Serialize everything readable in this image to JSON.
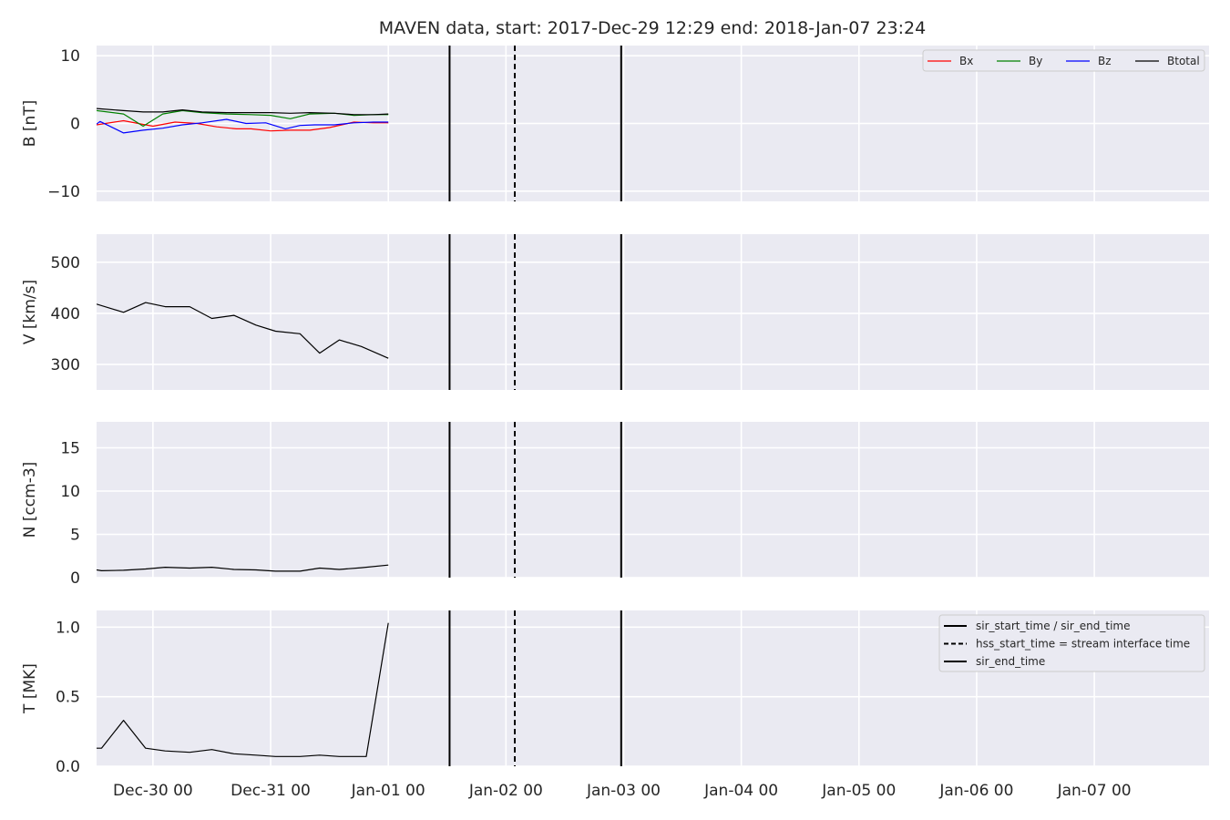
{
  "chart_data": {
    "type": "line",
    "title": "MAVEN data, start: 2017-Dec-29 12:29  end: 2018-Jan-07 23:24",
    "x_unit": "hours",
    "xlim": [
      -11.5,
      215.4
    ],
    "x_ticks": [
      0,
      24,
      48,
      72,
      96,
      120,
      144,
      168,
      192
    ],
    "x_tick_labels": [
      "Dec-30 00",
      "Dec-31 00",
      "Jan-01 00",
      "Jan-02 00",
      "Jan-03 00",
      "Jan-04 00",
      "Jan-05 00",
      "Jan-06 00",
      "Jan-07 00"
    ],
    "vertical_markers": [
      {
        "x": 60.5,
        "style": "solid"
      },
      {
        "x": 73.8,
        "style": "dashed"
      },
      {
        "x": 95.5,
        "style": "solid"
      }
    ],
    "grid": true,
    "panels": [
      {
        "id": "B",
        "ylabel": "B [nT]",
        "ylim": [
          -11.5,
          11.5
        ],
        "yticks": [
          -10,
          0,
          10
        ],
        "ytick_labels": [
          "−10",
          "0",
          "10"
        ],
        "legend_position": "top-right",
        "series": [
          {
            "name": "Bx",
            "color": "#ff0000",
            "x": [
              -11.5,
              -6,
              0,
              4.5,
              9,
              13,
              17,
              20,
              24,
              28,
              32,
              36,
              41,
              45,
              48
            ],
            "y": [
              -0.2,
              0.4,
              -0.4,
              0.2,
              0.0,
              -0.5,
              -0.8,
              -0.8,
              -1.1,
              -1.0,
              -1.0,
              -0.6,
              0.2,
              0.1,
              0.1
            ]
          },
          {
            "name": "By",
            "color": "#008000",
            "x": [
              -11.5,
              -6,
              -2,
              2,
              6,
              10,
              15,
              20,
              24,
              28,
              32,
              37,
              41,
              45,
              48
            ],
            "y": [
              1.9,
              1.4,
              -0.4,
              1.4,
              1.9,
              1.6,
              1.4,
              1.3,
              1.2,
              0.7,
              1.4,
              1.5,
              1.2,
              1.3,
              1.3
            ]
          },
          {
            "name": "Bz",
            "color": "#0000ff",
            "x": [
              -11.5,
              -10.8,
              -6,
              -2,
              2,
              6,
              10,
              15,
              19,
              23,
              27,
              30,
              33,
              37,
              41,
              45,
              48
            ],
            "y": [
              -0.1,
              0.3,
              -1.4,
              -1.0,
              -0.7,
              -0.2,
              0.1,
              0.6,
              0.0,
              0.1,
              -0.8,
              -0.3,
              -0.2,
              -0.2,
              0.1,
              0.2,
              0.2
            ]
          },
          {
            "name": "Btotal",
            "color": "#000000",
            "x": [
              -11.5,
              -6,
              -2,
              2,
              6,
              10,
              15,
              20,
              24,
              28,
              32,
              37,
              41,
              45,
              48
            ],
            "y": [
              2.2,
              1.9,
              1.7,
              1.7,
              2.0,
              1.7,
              1.6,
              1.6,
              1.6,
              1.5,
              1.6,
              1.5,
              1.3,
              1.3,
              1.4
            ]
          }
        ]
      },
      {
        "id": "V",
        "ylabel": "V [km/s]",
        "ylim": [
          250,
          555
        ],
        "yticks": [
          300,
          400,
          500
        ],
        "ytick_labels": [
          "300",
          "400",
          "500"
        ],
        "series": [
          {
            "name": "",
            "color": "#000000",
            "x": [
              -11.5,
              -6,
              -1.5,
              2.5,
              7.5,
              12,
              16.5,
              21,
              25,
              30,
              34,
              38,
              42.5,
              48
            ],
            "y": [
              418,
              402,
              421,
              413,
              413,
              390,
              396,
              377,
              365,
              360,
              322,
              348,
              335,
              312
            ]
          }
        ]
      },
      {
        "id": "N",
        "ylabel": "N [ccm-3]",
        "ylim": [
          0,
          18
        ],
        "yticks": [
          0,
          5,
          10,
          15
        ],
        "ytick_labels": [
          "0",
          "5",
          "10",
          "15"
        ],
        "series": [
          {
            "name": "",
            "color": "#000000",
            "x": [
              -11.5,
              -10.5,
              -6,
              -1.5,
              2.5,
              7.5,
              12,
              16.5,
              21,
              25,
              30,
              34,
              38,
              42.5,
              48
            ],
            "y": [
              0.9,
              0.8,
              0.85,
              1.0,
              1.2,
              1.1,
              1.2,
              0.95,
              0.9,
              0.75,
              0.75,
              1.1,
              0.95,
              1.15,
              1.45
            ]
          }
        ]
      },
      {
        "id": "T",
        "ylabel": "T [MK]",
        "ylim": [
          0,
          1.12
        ],
        "yticks": [
          0.0,
          0.5,
          1.0
        ],
        "ytick_labels": [
          "0.0",
          "0.5",
          "1.0"
        ],
        "legend_position": "top-right",
        "series": [
          {
            "name": "",
            "color": "#000000",
            "x": [
              -11.5,
              -10.5,
              -6,
              -1.5,
              2.5,
              7.5,
              12,
              16.5,
              21,
              25,
              30,
              34,
              38,
              43.5,
              48
            ],
            "y": [
              0.13,
              0.13,
              0.33,
              0.13,
              0.11,
              0.1,
              0.12,
              0.09,
              0.08,
              0.07,
              0.07,
              0.08,
              0.07,
              0.07,
              1.03
            ]
          }
        ],
        "legend_entries": [
          {
            "label": "sir_start_time / sir_end_time",
            "style": "solid"
          },
          {
            "label": "hss_start_time = stream interface time",
            "style": "dashed"
          },
          {
            "label": "sir_end_time",
            "style": "solid"
          }
        ]
      }
    ]
  }
}
